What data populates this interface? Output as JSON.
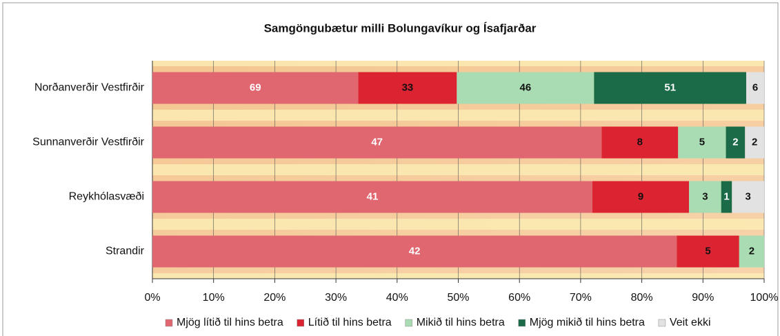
{
  "chart_data": {
    "type": "bar100h",
    "title": "Samgöngubætur milli Bolungavíkur og Ísafjarðar",
    "categories": [
      "Norðanverðir Vestfirðir",
      "Sunnanverðir Vestfirðir",
      "Reykhólasvæði",
      "Strandir"
    ],
    "series": [
      {
        "name": "Mjög lítið til hins betra",
        "color": "#e06670",
        "label_color": "#ffffff",
        "values": [
          69,
          47,
          41,
          42
        ]
      },
      {
        "name": "Lítið til hins betra",
        "color": "#dc2332",
        "label_color": "#111111",
        "values": [
          33,
          8,
          9,
          5
        ]
      },
      {
        "name": "Mikið til hins betra",
        "color": "#a9dcb2",
        "label_color": "#111111",
        "values": [
          46,
          5,
          3,
          2
        ]
      },
      {
        "name": "Mjög mikið til hins betra",
        "color": "#1b6b48",
        "label_color": "#ffffff",
        "values": [
          51,
          2,
          1,
          null
        ]
      },
      {
        "name": "Veit ekki",
        "color": "#e2e2e2",
        "label_color": "#111111",
        "values": [
          6,
          2,
          3,
          null
        ]
      }
    ],
    "xlim": [
      0,
      100
    ],
    "xticks": [
      {
        "value": 0,
        "label": "0%"
      },
      {
        "value": 10,
        "label": "10%"
      },
      {
        "value": 20,
        "label": "20%"
      },
      {
        "value": 30,
        "label": "30%"
      },
      {
        "value": 40,
        "label": "40%"
      },
      {
        "value": 50,
        "label": "50%"
      },
      {
        "value": 60,
        "label": "60%"
      },
      {
        "value": 70,
        "label": "70%"
      },
      {
        "value": 80,
        "label": "80%"
      },
      {
        "value": 90,
        "label": "90%"
      },
      {
        "value": 100,
        "label": "100%"
      }
    ],
    "grid": true,
    "legend": "bottom"
  }
}
